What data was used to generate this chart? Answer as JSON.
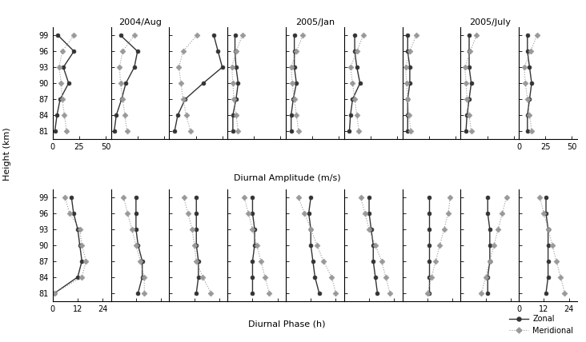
{
  "heights": [
    81,
    84,
    87,
    90,
    93,
    96,
    99
  ],
  "groups": [
    "2004/Aug",
    "2005/Jan",
    "2005/July"
  ],
  "ylabel": "Height (km)",
  "xlabel_amp": "Diurnal Amplitude (m/s)",
  "xlabel_phase": "Diurnal Phase (h)",
  "legend_zonal": "Zonal",
  "legend_meridional": "Meridional",
  "zonal_color": "#333333",
  "meridional_color": "#999999",
  "amp_xlim": [
    0,
    55
  ],
  "amp_xticks": [
    0,
    25,
    50
  ],
  "amp_xticklabels": [
    "0",
    "25",
    "50"
  ],
  "phase_xlim": [
    0,
    28
  ],
  "phase_xticks": [
    0,
    12,
    24
  ],
  "phase_xticklabels": [
    "0",
    "12",
    "24"
  ],
  "ylim": [
    79.5,
    100.5
  ],
  "yticks": [
    81,
    84,
    87,
    90,
    93,
    96,
    99
  ],
  "title_fontsize": 8,
  "tick_fontsize": 7,
  "label_fontsize": 8,
  "amp_zonal": [
    [
      2,
      4,
      7,
      15,
      10,
      20,
      5
    ],
    [
      3,
      5,
      10,
      14,
      22,
      25,
      9
    ],
    [
      5,
      8,
      15,
      32,
      50,
      46,
      42
    ],
    [
      5,
      5,
      8,
      10,
      8,
      7,
      7
    ],
    [
      5,
      5,
      7,
      10,
      8,
      8,
      8
    ],
    [
      5,
      6,
      8,
      15,
      12,
      10,
      10
    ],
    [
      5,
      5,
      5,
      7,
      7,
      5,
      5
    ],
    [
      5,
      6,
      8,
      10,
      8,
      8,
      8
    ],
    [
      8,
      8,
      10,
      12,
      10,
      8,
      8
    ]
  ],
  "amp_meridional": [
    [
      13,
      11,
      9,
      8,
      6,
      9,
      20
    ],
    [
      15,
      13,
      11,
      9,
      8,
      11,
      22
    ],
    [
      20,
      16,
      13,
      11,
      9,
      13,
      26
    ],
    [
      10,
      8,
      6,
      5,
      4,
      8,
      14
    ],
    [
      12,
      10,
      8,
      6,
      5,
      10,
      16
    ],
    [
      14,
      12,
      10,
      8,
      6,
      12,
      18
    ],
    [
      8,
      6,
      5,
      4,
      3,
      7,
      13
    ],
    [
      10,
      8,
      6,
      5,
      4,
      9,
      15
    ],
    [
      12,
      10,
      8,
      6,
      5,
      11,
      17
    ]
  ],
  "phase_zonal": [
    [
      1,
      12,
      14,
      13,
      12,
      10,
      9
    ],
    [
      13,
      15,
      15,
      13,
      12,
      12,
      12
    ],
    [
      13,
      14,
      14,
      13,
      13,
      13,
      13
    ],
    [
      12,
      12,
      12,
      13,
      13,
      12,
      12
    ],
    [
      16,
      14,
      13,
      12,
      12,
      11,
      12
    ],
    [
      16,
      15,
      14,
      14,
      13,
      12,
      12
    ],
    [
      13,
      13,
      13,
      13,
      13,
      13,
      13
    ],
    [
      13,
      13,
      14,
      14,
      14,
      13,
      13
    ],
    [
      13,
      14,
      14,
      14,
      14,
      13,
      13
    ]
  ],
  "phase_meridional": [
    [
      1,
      14,
      16,
      14,
      13,
      8,
      6
    ],
    [
      16,
      16,
      14,
      12,
      10,
      8,
      6
    ],
    [
      20,
      16,
      13,
      12,
      11,
      9,
      7
    ],
    [
      20,
      18,
      16,
      14,
      12,
      10,
      8
    ],
    [
      24,
      22,
      18,
      15,
      12,
      9,
      6
    ],
    [
      22,
      20,
      18,
      15,
      12,
      10,
      8
    ],
    [
      12,
      14,
      16,
      18,
      20,
      22,
      23
    ],
    [
      10,
      12,
      14,
      16,
      18,
      20,
      22
    ],
    [
      22,
      20,
      18,
      16,
      14,
      12,
      10
    ]
  ],
  "show_xtick_cols": [
    0,
    8
  ],
  "group_title_cols": [
    1,
    4,
    7
  ]
}
